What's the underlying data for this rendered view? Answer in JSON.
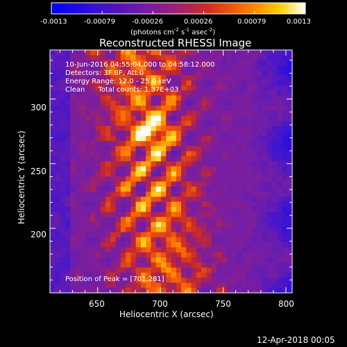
{
  "colorbar": {
    "ticks": [
      "-0.0013",
      "-0.00079",
      "-0.00026",
      "0.00026",
      "0.00079",
      "0.0013"
    ],
    "unit_label_parts": [
      "(photons cm",
      "-2",
      " s",
      "-1",
      " asec",
      "-2",
      ")"
    ],
    "range": [
      -0.0013,
      0.0013
    ]
  },
  "chart_data": {
    "type": "heatmap",
    "title": "Reconstructed RHESSI Image",
    "xlabel": "Heliocentric X (arcsec)",
    "ylabel": "Heliocentric Y (arcsec)",
    "xlim": [
      612,
      805
    ],
    "ylim": [
      150,
      338
    ],
    "xticks": [
      "650",
      "700",
      "750",
      "800"
    ],
    "yticks": [
      "200",
      "250",
      "300"
    ],
    "peak": {
      "x": 701,
      "y": 281
    },
    "colormap": "red-temperature (blue-negative, purple-zero, red/yellow/white-positive)"
  },
  "annotations": {
    "time_range": "10-Jun-2016 04:55:04.000 to 04:58:12.000",
    "detectors": "Detectors: 3F 8F, Att 0",
    "energy": "Energy Range: 12.0 - 25.0 keV",
    "method": "Clean      Total counts: 1.37E+03",
    "peak_label": "Position of Peak = [701,281]"
  },
  "footer": {
    "date": "12-Apr-2018 00:05"
  }
}
